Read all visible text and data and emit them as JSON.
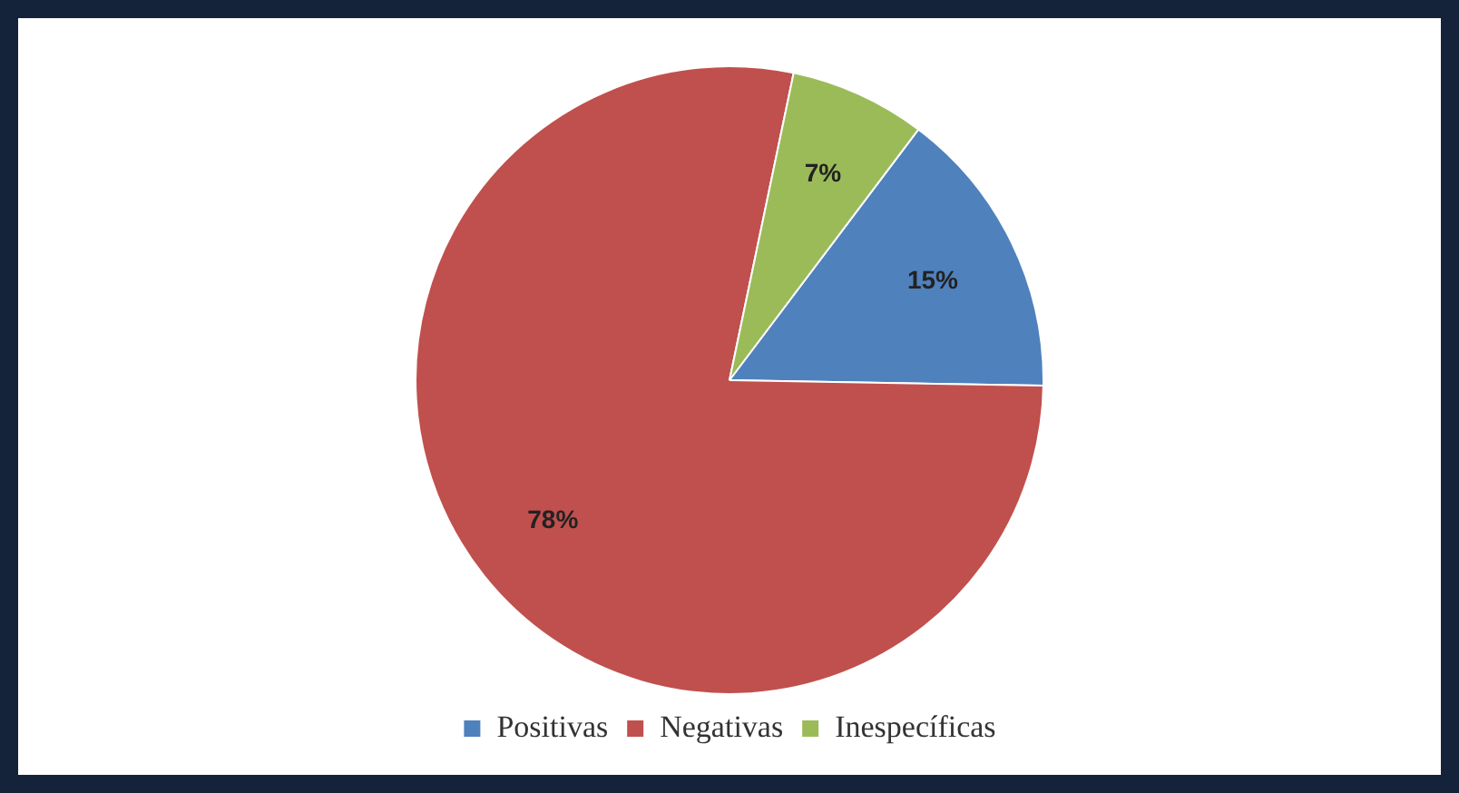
{
  "chart_data": {
    "type": "pie",
    "categories": [
      "Positivas",
      "Negativas",
      "Inespecíficas"
    ],
    "values": [
      15,
      78,
      7
    ],
    "colors": [
      "#4f81bd",
      "#c0504d",
      "#9bbb59"
    ],
    "value_labels": [
      "15%",
      "78%",
      "7%"
    ],
    "legend": "bottom"
  }
}
